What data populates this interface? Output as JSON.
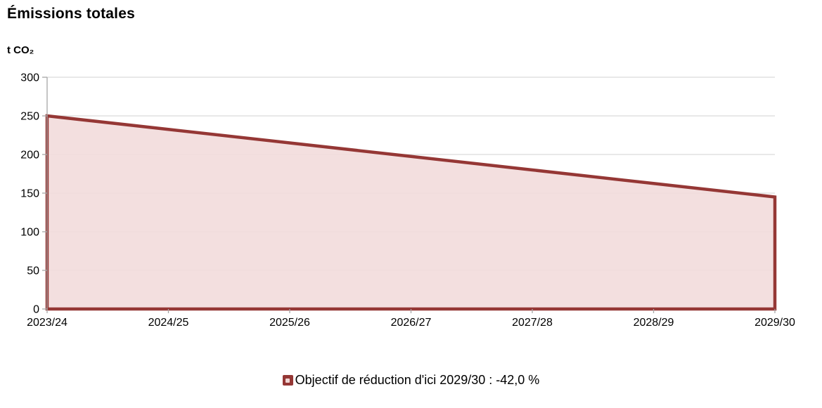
{
  "page": {
    "title": "Émissions totales"
  },
  "chart_data": {
    "type": "area",
    "title": "Émissions totales",
    "unit_label": "t CO₂",
    "xlabel": "",
    "ylabel": "t CO₂",
    "categories": [
      "2023/24",
      "2024/25",
      "2025/26",
      "2026/27",
      "2027/28",
      "2028/29",
      "2029/30"
    ],
    "series": [
      {
        "name": "Objectif de réduction d'ici 2029/30 : -42,0 %",
        "values": [
          250,
          232.5,
          215,
          197.5,
          180,
          162.5,
          145
        ]
      }
    ],
    "reduction_target_percent": "-42,0 %",
    "target_year": "2029/30",
    "ylim": [
      0,
      300
    ],
    "y_ticks": [
      0,
      50,
      100,
      150,
      200,
      250,
      300
    ],
    "grid": true,
    "legend_position": "bottom-center",
    "colors": {
      "line": "#953735",
      "fill": "#f2dcdb",
      "grid": "#d9d9d9",
      "axis": "#a6a6a6",
      "text": "#000000",
      "legend_marker_inner": "#f0d6d4"
    }
  }
}
